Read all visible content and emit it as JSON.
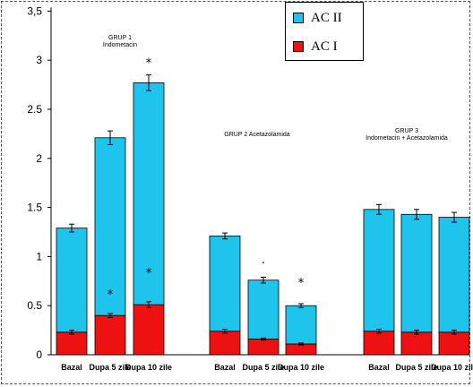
{
  "chart_data": {
    "type": "bar",
    "stacked": true,
    "ylim": [
      0,
      3.5
    ],
    "y_ticks": [
      "0",
      "0.5",
      "1",
      "1.5",
      "2",
      "2.5",
      "3",
      "3,5"
    ],
    "categories": [
      "Bazal",
      "Dupa 5 zile",
      "Dupa 10 zile",
      "Bazal",
      "Dupa 5 zile",
      "Dupa 10 zile",
      "Bazal",
      "Dupa 5 zile",
      "Dupa 10 zile"
    ],
    "groups": [
      {
        "label_lines": [
          "GRUP 1",
          "Indometacin"
        ]
      },
      {
        "label_lines": [
          "GRUP 2 Acetazolamida"
        ]
      },
      {
        "label_lines": [
          "GRUP 3",
          "Indometacin + Acetazolamida"
        ]
      }
    ],
    "series": [
      {
        "name": "AC I",
        "color": "#ee1111",
        "values": [
          0.23,
          0.4,
          0.51,
          0.24,
          0.16,
          0.11,
          0.24,
          0.23,
          0.23
        ],
        "errors": [
          0.02,
          0.02,
          0.03,
          0.02,
          0.01,
          0.01,
          0.02,
          0.02,
          0.02
        ]
      },
      {
        "name": "AC II",
        "color": "#1fc4ec",
        "values": [
          1.06,
          1.81,
          2.26,
          0.97,
          0.6,
          0.39,
          1.24,
          1.2,
          1.17
        ],
        "errors": [
          0.04,
          0.07,
          0.08,
          0.03,
          0.03,
          0.02,
          0.05,
          0.05,
          0.05
        ]
      }
    ],
    "markers": [
      {
        "index": 1,
        "text": "*",
        "y": 0.62
      },
      {
        "index": 2,
        "text": "*",
        "y": 0.84
      },
      {
        "index": 2,
        "text": "*",
        "y": 2.98
      },
      {
        "index": 4,
        "text": "·",
        "y": 0.94
      },
      {
        "index": 5,
        "text": "*",
        "y": 0.74
      }
    ],
    "legend": {
      "position": "top-right",
      "entries": [
        "AC II",
        "AC I"
      ]
    }
  }
}
